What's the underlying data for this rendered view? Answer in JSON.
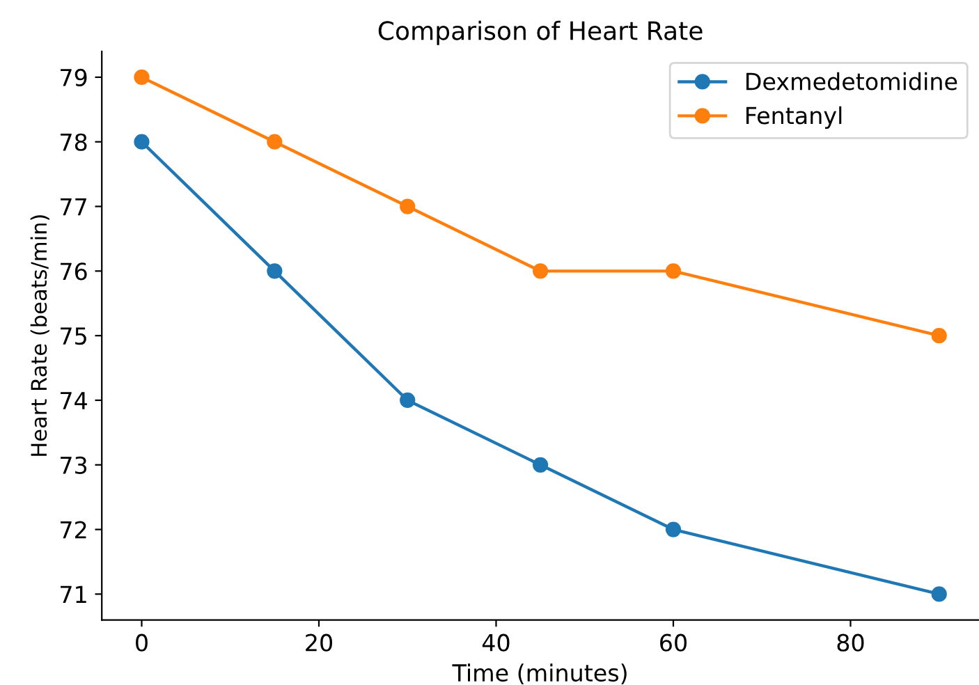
{
  "chart_data": {
    "type": "line",
    "title": "Comparison of Heart Rate",
    "xlabel": "Time (minutes)",
    "ylabel": "Heart Rate (beats/min)",
    "x": [
      0,
      15,
      30,
      45,
      60,
      90
    ],
    "series": [
      {
        "name": "Dexmedetomidine",
        "color": "#1f77b4",
        "values": [
          78,
          76,
          74,
          73,
          72,
          71
        ]
      },
      {
        "name": "Fentanyl",
        "color": "#ff7f0e",
        "values": [
          79,
          78,
          77,
          76,
          76,
          75
        ]
      }
    ],
    "xlim": [
      -4.5,
      94.5
    ],
    "ylim": [
      70.6,
      79.4
    ],
    "xticks": [
      0,
      20,
      40,
      60,
      80
    ],
    "yticks": [
      71,
      72,
      73,
      74,
      75,
      76,
      77,
      78,
      79
    ],
    "marker": "circle",
    "line_style": "solid",
    "legend": "top right",
    "grid": false
  }
}
